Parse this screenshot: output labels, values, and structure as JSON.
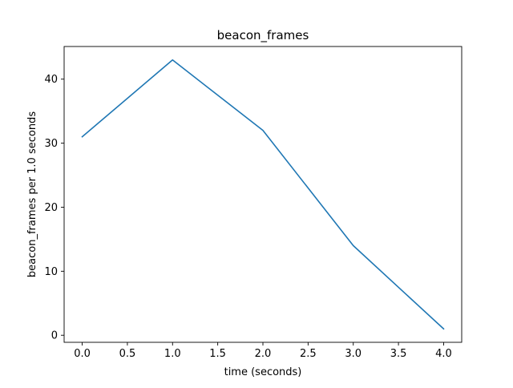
{
  "chart_data": {
    "type": "line",
    "title": "beacon_frames",
    "xlabel": "time (seconds)",
    "ylabel": "beacon_frames per 1.0 seconds",
    "x": [
      0.0,
      1.0,
      2.0,
      3.0,
      4.0
    ],
    "series": [
      {
        "values": [
          31,
          43,
          32,
          14,
          1
        ],
        "color": "#1f77b4"
      }
    ],
    "xlim": [
      -0.2,
      4.2
    ],
    "ylim": [
      -1.1,
      45.1
    ],
    "xticks": [
      0.0,
      0.5,
      1.0,
      1.5,
      2.0,
      2.5,
      3.0,
      3.5,
      4.0
    ],
    "xtick_labels": [
      "0.0",
      "0.5",
      "1.0",
      "1.5",
      "2.0",
      "2.5",
      "3.0",
      "3.5",
      "4.0"
    ],
    "yticks": [
      0,
      10,
      20,
      30,
      40
    ],
    "ytick_labels": [
      "0",
      "10",
      "20",
      "30",
      "40"
    ],
    "grid": false,
    "legend": "none"
  }
}
